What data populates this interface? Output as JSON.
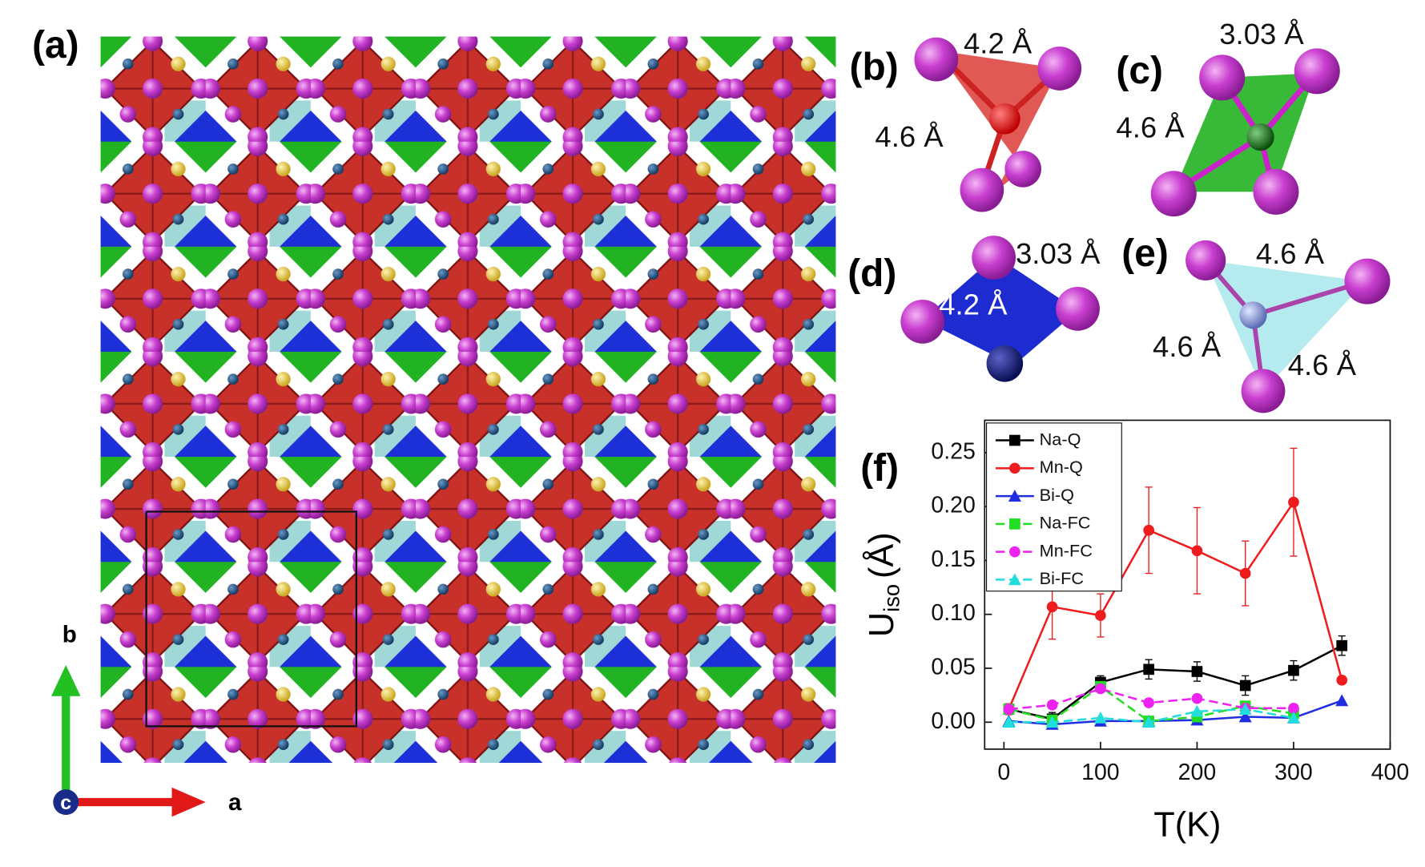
{
  "panels": {
    "a": "(a)",
    "b": "(b)",
    "c": "(c)",
    "d": "(d)",
    "e": "(e)",
    "f": "(f)"
  },
  "axes_labels": {
    "a": "a",
    "b": "b",
    "c": "c"
  },
  "distances": {
    "b": [
      "4.2 Å",
      "4.6 Å"
    ],
    "c": [
      "3.03 Å",
      "4.6 Å"
    ],
    "d": [
      "3.03 Å",
      "4.2 Å"
    ],
    "e": [
      "4.6 Å",
      "4.6 Å",
      "4.6 Å"
    ]
  },
  "chart_data": {
    "type": "line",
    "xlabel": "T(K)",
    "ylabel": {
      "main": "U",
      "sub": "iso",
      "unit": "(Å)"
    },
    "x": [
      5,
      50,
      100,
      150,
      200,
      250,
      300,
      350
    ],
    "xlim": [
      -20,
      400
    ],
    "xticks": [
      0,
      100,
      200,
      300,
      400
    ],
    "ylim": [
      -0.025,
      0.28
    ],
    "yticks": [
      {
        "value": 0,
        "label": "0.00"
      },
      {
        "value": 0.05,
        "label": "0.05"
      },
      {
        "value": 0.1,
        "label": "0.10"
      },
      {
        "value": 0.15,
        "label": "0.15"
      },
      {
        "value": 0.2,
        "label": "0.20"
      },
      {
        "value": 0.25,
        "label": "0.25"
      }
    ],
    "legend": "upper left",
    "series": [
      {
        "name": "Na-Q",
        "color": "#000000",
        "marker": "square",
        "dash": false,
        "values": [
          0.012,
          0.003,
          0.037,
          0.049,
          0.047,
          0.034,
          0.048,
          0.071
        ],
        "errors": [
          0.005,
          0.006,
          0.006,
          0.009,
          0.009,
          0.009,
          0.009,
          0.009
        ]
      },
      {
        "name": "Mn-Q",
        "color": "#ee1c1c",
        "marker": "circle",
        "dash": false,
        "values": [
          0.012,
          0.107,
          0.099,
          0.178,
          0.159,
          0.138,
          0.204,
          0.039
        ],
        "errors": [
          0.005,
          0.03,
          0.02,
          0.04,
          0.04,
          0.03,
          0.05,
          0.002
        ]
      },
      {
        "name": "Bi-Q",
        "color": "#1f2ee0",
        "marker": "triangle",
        "dash": false,
        "values": [
          0.001,
          -0.002,
          0.001,
          0.001,
          0.002,
          0.005,
          0.004,
          0.02
        ]
      },
      {
        "name": "Na-FC",
        "color": "#22dd22",
        "marker": "square",
        "dash": true,
        "values": [
          0.012,
          0.002,
          0.033,
          0.001,
          0.005,
          0.015,
          0.008,
          null
        ]
      },
      {
        "name": "Mn-FC",
        "color": "#ee22ee",
        "marker": "circle",
        "dash": true,
        "values": [
          0.012,
          0.016,
          0.031,
          0.018,
          0.022,
          0.013,
          0.013,
          null
        ]
      },
      {
        "name": "Bi-FC",
        "color": "#22dddd",
        "marker": "triangle",
        "dash": true,
        "values": [
          0,
          0,
          0.004,
          0,
          0.01,
          0.012,
          0.004,
          null
        ]
      }
    ]
  }
}
